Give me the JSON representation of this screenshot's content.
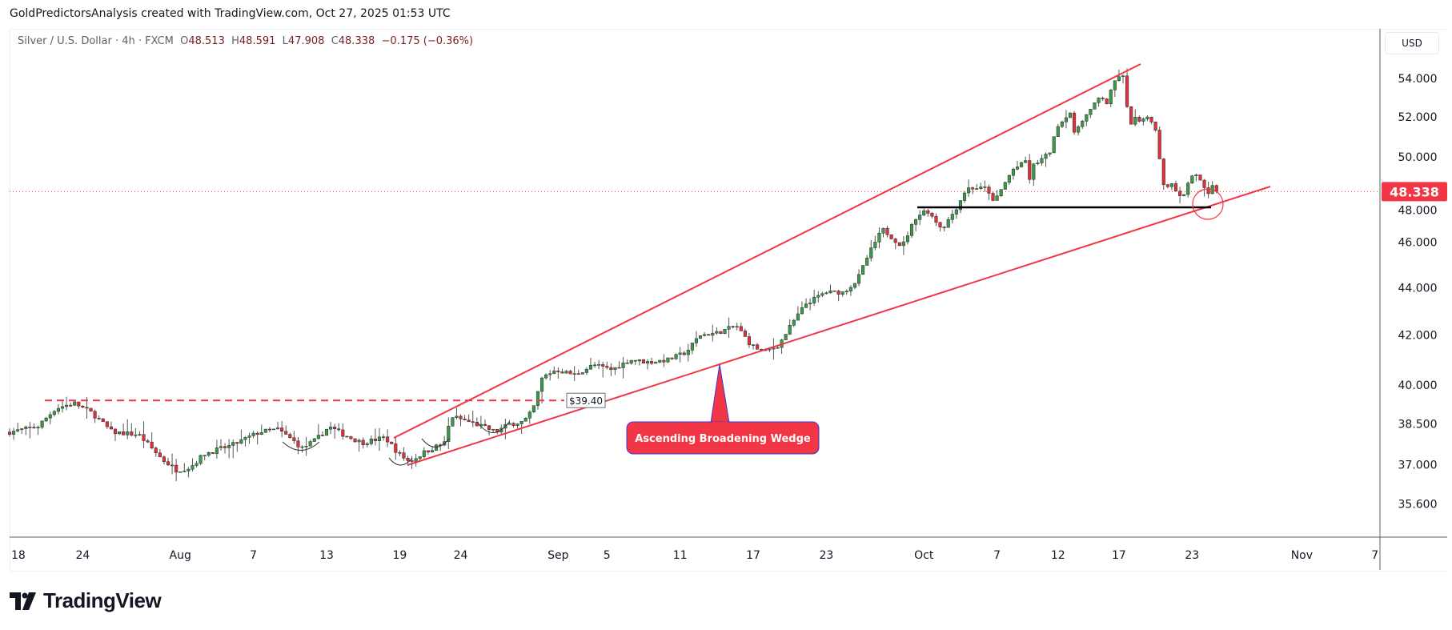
{
  "caption": "GoldPredictorsAnalysis created with TradingView.com, Oct 27, 2025 01:53 UTC",
  "legend": {
    "symbol": "Silver / U.S. Dollar · 4h · FXCM",
    "open_label": "O",
    "open": "48.513",
    "high_label": "H",
    "high": "48.591",
    "low_label": "L",
    "low": "47.908",
    "close_label": "C",
    "close": "48.338",
    "change": "−0.175 (−0.36%)"
  },
  "currency_button": "USD",
  "last_price_label": "48.338",
  "logo_text": "TradingView",
  "colors": {
    "up": "#3a9a4a",
    "down": "#e0313a",
    "pattern": "#f23645",
    "last_price": "#f23645"
  },
  "chart_data": {
    "type": "candlestick",
    "title": "Silver / U.S. Dollar · 4h · FXCM",
    "x_unit": "days since Jul 18, 2025",
    "y_scale": "log",
    "ylim": [
      34.8,
      56.2
    ],
    "y_ticks": [
      "54.000",
      "52.000",
      "50.000",
      "48.000",
      "46.000",
      "44.000",
      "42.000",
      "40.000",
      "38.500",
      "37.000",
      "35.600"
    ],
    "y_tick_values": [
      54,
      52,
      50,
      48,
      46,
      44,
      42,
      40,
      38.5,
      37,
      35.6
    ],
    "x_ticks": [
      {
        "label": "18",
        "day": 0
      },
      {
        "label": "24",
        "day": 6
      },
      {
        "label": "Aug",
        "day": 14
      },
      {
        "label": "7",
        "day": 20
      },
      {
        "label": "13",
        "day": 26
      },
      {
        "label": "19",
        "day": 32
      },
      {
        "label": "24",
        "day": 37
      },
      {
        "label": "Sep",
        "day": 45
      },
      {
        "label": "5",
        "day": 49
      },
      {
        "label": "11",
        "day": 55
      },
      {
        "label": "17",
        "day": 61
      },
      {
        "label": "23",
        "day": 67
      },
      {
        "label": "Oct",
        "day": 75
      },
      {
        "label": "7",
        "day": 81
      },
      {
        "label": "12",
        "day": 86
      },
      {
        "label": "17",
        "day": 91
      },
      {
        "label": "23",
        "day": 97
      },
      {
        "label": "Nov",
        "day": 106
      },
      {
        "label": "7",
        "day": 112
      }
    ],
    "price_path": {
      "x": [
        0,
        2.3,
        3.8,
        5.3,
        6.8,
        8.4,
        10.6,
        12.5,
        13.7,
        14.8,
        16,
        18.2,
        20.5,
        22,
        23.2,
        24,
        25.1,
        26.2,
        27.4,
        28.9,
        30.8,
        31.9,
        32.8,
        34.2,
        35.7,
        36.2,
        37.6,
        38.8,
        39.9,
        41,
        42.2,
        42.9,
        43.7,
        44.8,
        46.4,
        47.9,
        49.4,
        50.9,
        52.4,
        54,
        55.5,
        56.6,
        58.1,
        59.6,
        60.8,
        61.9,
        63.1,
        64.2,
        65.3,
        66.9,
        68.4,
        69.5,
        70.5,
        71.6,
        73.2,
        74.3,
        75.2,
        76.5,
        77.7,
        78.5,
        80.2,
        80.7,
        81.5,
        82.3,
        82.9,
        83.5,
        83.6,
        84,
        85.3,
        86,
        86.6,
        86.9,
        87.3,
        87.9,
        88.6,
        89.5,
        90,
        90.6,
        91.2,
        91.5,
        91.8,
        92.2,
        92.8,
        93.5,
        94,
        94.3,
        94.5,
        95.1,
        95.5,
        95.7,
        96.3,
        96.8,
        97.3,
        97.7,
        98.3,
        98.6,
        99.2
      ],
      "close": [
        38.2,
        38.4,
        39.1,
        39.3,
        38.9,
        38.2,
        38.1,
        37.2,
        36.8,
        36.9,
        37.4,
        37.7,
        38.2,
        38.3,
        37.9,
        37.6,
        37.9,
        38.4,
        38.1,
        37.8,
        38.0,
        37.4,
        37.1,
        37.5,
        37.8,
        38.8,
        38.6,
        38.4,
        38.2,
        38.5,
        38.6,
        39.0,
        40.3,
        40.6,
        40.4,
        40.8,
        40.6,
        41.0,
        40.9,
        41.0,
        41.3,
        42.0,
        42.1,
        42.4,
        41.6,
        41.3,
        41.6,
        42.5,
        43.3,
        43.8,
        43.8,
        44.3,
        45.5,
        46.6,
        45.8,
        47.1,
        47.5,
        46.6,
        47.6,
        48.5,
        48.5,
        47.8,
        48.6,
        49.4,
        49.6,
        49.9,
        48.8,
        49.6,
        50.2,
        51.6,
        51.9,
        52.6,
        51.1,
        51.8,
        52.3,
        53.1,
        52.7,
        53.8,
        54.3,
        53.8,
        51.4,
        52.0,
        51.7,
        52.1,
        51.3,
        50.2,
        48.8,
        48.5,
        49.0,
        48.3,
        48.1,
        49.0,
        49.2,
        48.8,
        48.1,
        48.6,
        48.338
      ]
    },
    "annotations": {
      "pattern_label": "Ascending Broadening Wedge",
      "resistance_label": "$39.40",
      "resistance_value": 39.4,
      "support_value": 47.6,
      "last_price": 48.338
    }
  }
}
